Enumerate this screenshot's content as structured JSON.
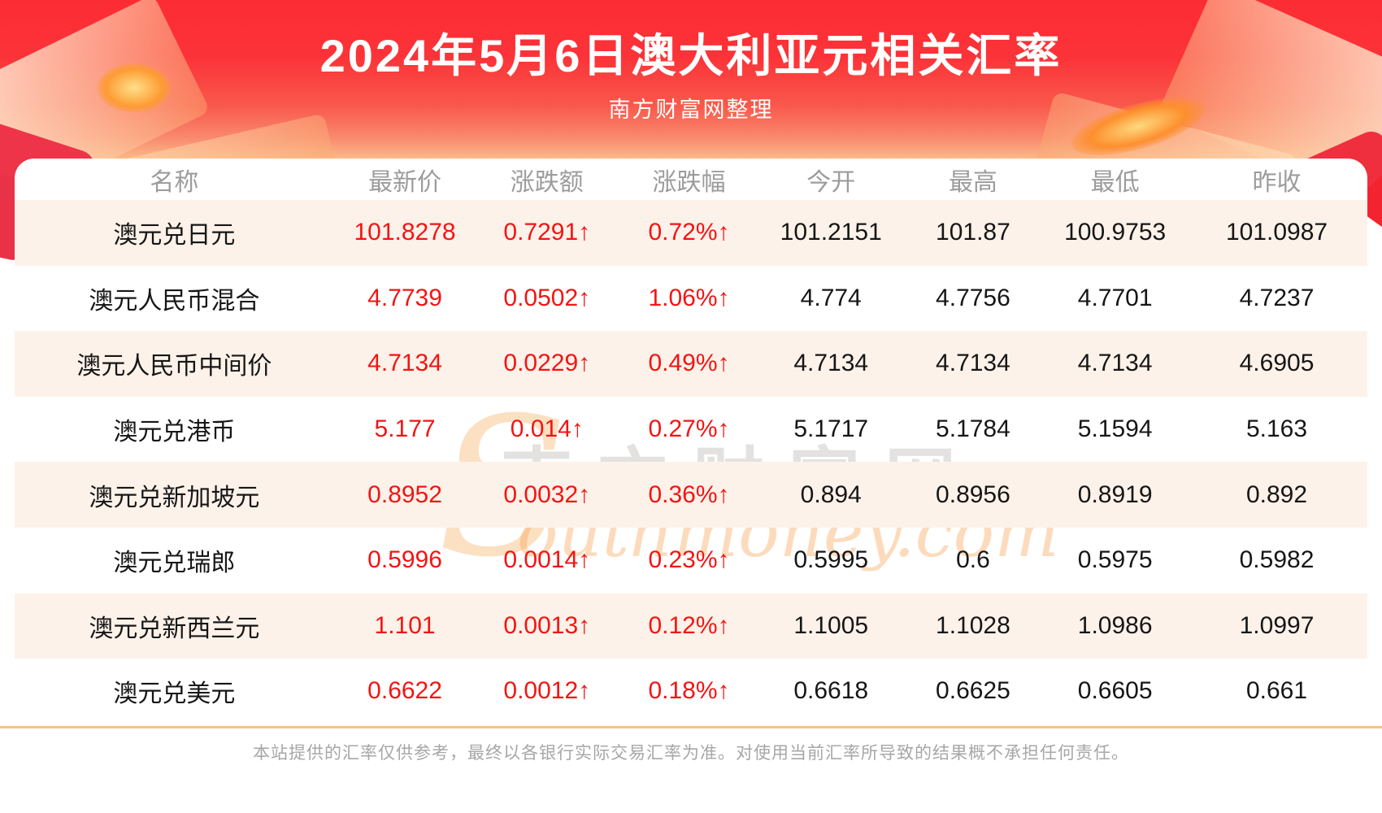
{
  "header": {
    "title": "2024年5月6日澳大利亚元相关汇率",
    "subtitle": "南方财富网整理"
  },
  "chart_data": {
    "type": "table",
    "title": "2024年5月6日澳大利亚元相关汇率",
    "columns": [
      "名称",
      "最新价",
      "涨跌额",
      "涨跌幅",
      "今开",
      "最高",
      "最低",
      "昨收"
    ],
    "rows": [
      {
        "name": "澳元兑日元",
        "latest": "101.8278",
        "change": "0.7291↑",
        "change_pct": "0.72%↑",
        "open": "101.2151",
        "high": "101.87",
        "low": "100.9753",
        "prev_close": "101.0987"
      },
      {
        "name": "澳元人民币混合",
        "latest": "4.7739",
        "change": "0.0502↑",
        "change_pct": "1.06%↑",
        "open": "4.774",
        "high": "4.7756",
        "low": "4.7701",
        "prev_close": "4.7237"
      },
      {
        "name": "澳元人民币中间价",
        "latest": "4.7134",
        "change": "0.0229↑",
        "change_pct": "0.49%↑",
        "open": "4.7134",
        "high": "4.7134",
        "low": "4.7134",
        "prev_close": "4.6905"
      },
      {
        "name": "澳元兑港币",
        "latest": "5.177",
        "change": "0.014↑",
        "change_pct": "0.27%↑",
        "open": "5.1717",
        "high": "5.1784",
        "low": "5.1594",
        "prev_close": "5.163"
      },
      {
        "name": "澳元兑新加坡元",
        "latest": "0.8952",
        "change": "0.0032↑",
        "change_pct": "0.36%↑",
        "open": "0.894",
        "high": "0.8956",
        "low": "0.8919",
        "prev_close": "0.892"
      },
      {
        "name": "澳元兑瑞郎",
        "latest": "0.5996",
        "change": "0.0014↑",
        "change_pct": "0.23%↑",
        "open": "0.5995",
        "high": "0.6",
        "low": "0.5975",
        "prev_close": "0.5982"
      },
      {
        "name": "澳元兑新西兰元",
        "latest": "1.101",
        "change": "0.0013↑",
        "change_pct": "0.12%↑",
        "open": "1.1005",
        "high": "1.1028",
        "low": "1.0986",
        "prev_close": "1.0997"
      },
      {
        "name": "澳元兑美元",
        "latest": "0.6622",
        "change": "0.0012↑",
        "change_pct": "0.18%↑",
        "open": "0.6618",
        "high": "0.6625",
        "low": "0.6605",
        "prev_close": "0.661"
      }
    ]
  },
  "watermark": {
    "swoosh": "S",
    "cn": "南方财富网",
    "en": "outhmoney.com"
  },
  "footer": {
    "disclaimer": "本站提供的汇率仅供参考，最终以各银行实际交易汇率为准。对使用当前汇率所导致的结果概不承担任何责任。"
  },
  "colors": {
    "hero_red_top": "#fc2c33",
    "hero_peach_bottom": "#fcc28c",
    "row_alt_peach": "#fdf2e9",
    "value_red": "#f41414",
    "text_black": "#161616",
    "header_gray": "#9c9c9c",
    "divider_tan": "#f6c38b",
    "footer_gray": "#a7a7a7"
  }
}
